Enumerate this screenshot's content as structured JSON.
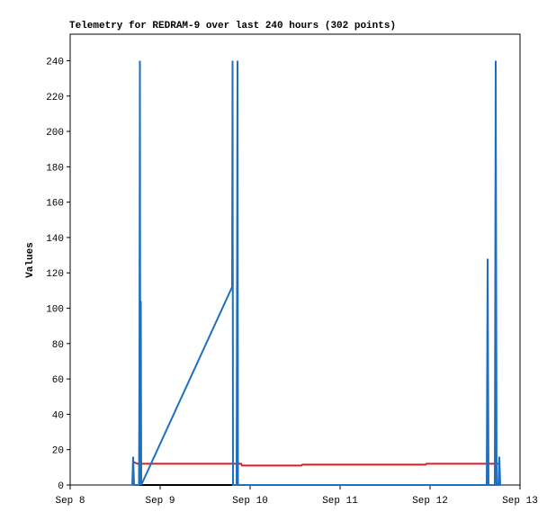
{
  "chart_data": {
    "type": "line",
    "title": "Telemetry for REDRAM-9 over last 240 hours (302 points)",
    "y_label": "Values",
    "xlim": [
      0,
      5
    ],
    "xticks": [
      {
        "value": 0,
        "label": "Sep 8"
      },
      {
        "value": 1,
        "label": "Sep 9"
      },
      {
        "value": 2,
        "label": "Sep 10"
      },
      {
        "value": 3,
        "label": "Sep 11"
      },
      {
        "value": 4,
        "label": "Sep 12"
      },
      {
        "value": 5,
        "label": "Sep 13"
      }
    ],
    "ylim": [
      0,
      255
    ],
    "yticks": [
      0,
      20,
      40,
      60,
      80,
      100,
      120,
      140,
      160,
      180,
      200,
      220,
      240
    ],
    "grid": false,
    "series": [
      {
        "color": "#000000",
        "x": [
          0.7,
          4.77
        ],
        "values": [
          0,
          0
        ]
      },
      {
        "color": "#d62020",
        "x": [
          0.7,
          0.75,
          1.9,
          1.91,
          2.57,
          2.58,
          3.95,
          3.96,
          4.77
        ],
        "values": [
          13,
          12,
          12,
          11,
          11,
          11.5,
          11.5,
          12,
          12
        ]
      },
      {
        "color": "#1f6fbf",
        "x": [
          0.69,
          0.7,
          0.71,
          0.765,
          0.77,
          0.775,
          0.78,
          0.785,
          0.79,
          1.8,
          1.805,
          1.81,
          1.85,
          1.855,
          1.86,
          1.865,
          4.63,
          4.64,
          4.65,
          4.72,
          4.73,
          4.74,
          4.76,
          4.77,
          4.78
        ],
        "values": [
          0,
          16,
          0,
          0,
          64,
          240,
          0,
          104,
          0,
          112,
          240,
          0,
          0,
          120,
          240,
          0,
          0,
          128,
          0,
          0,
          240,
          0,
          0,
          16,
          0
        ]
      }
    ]
  }
}
